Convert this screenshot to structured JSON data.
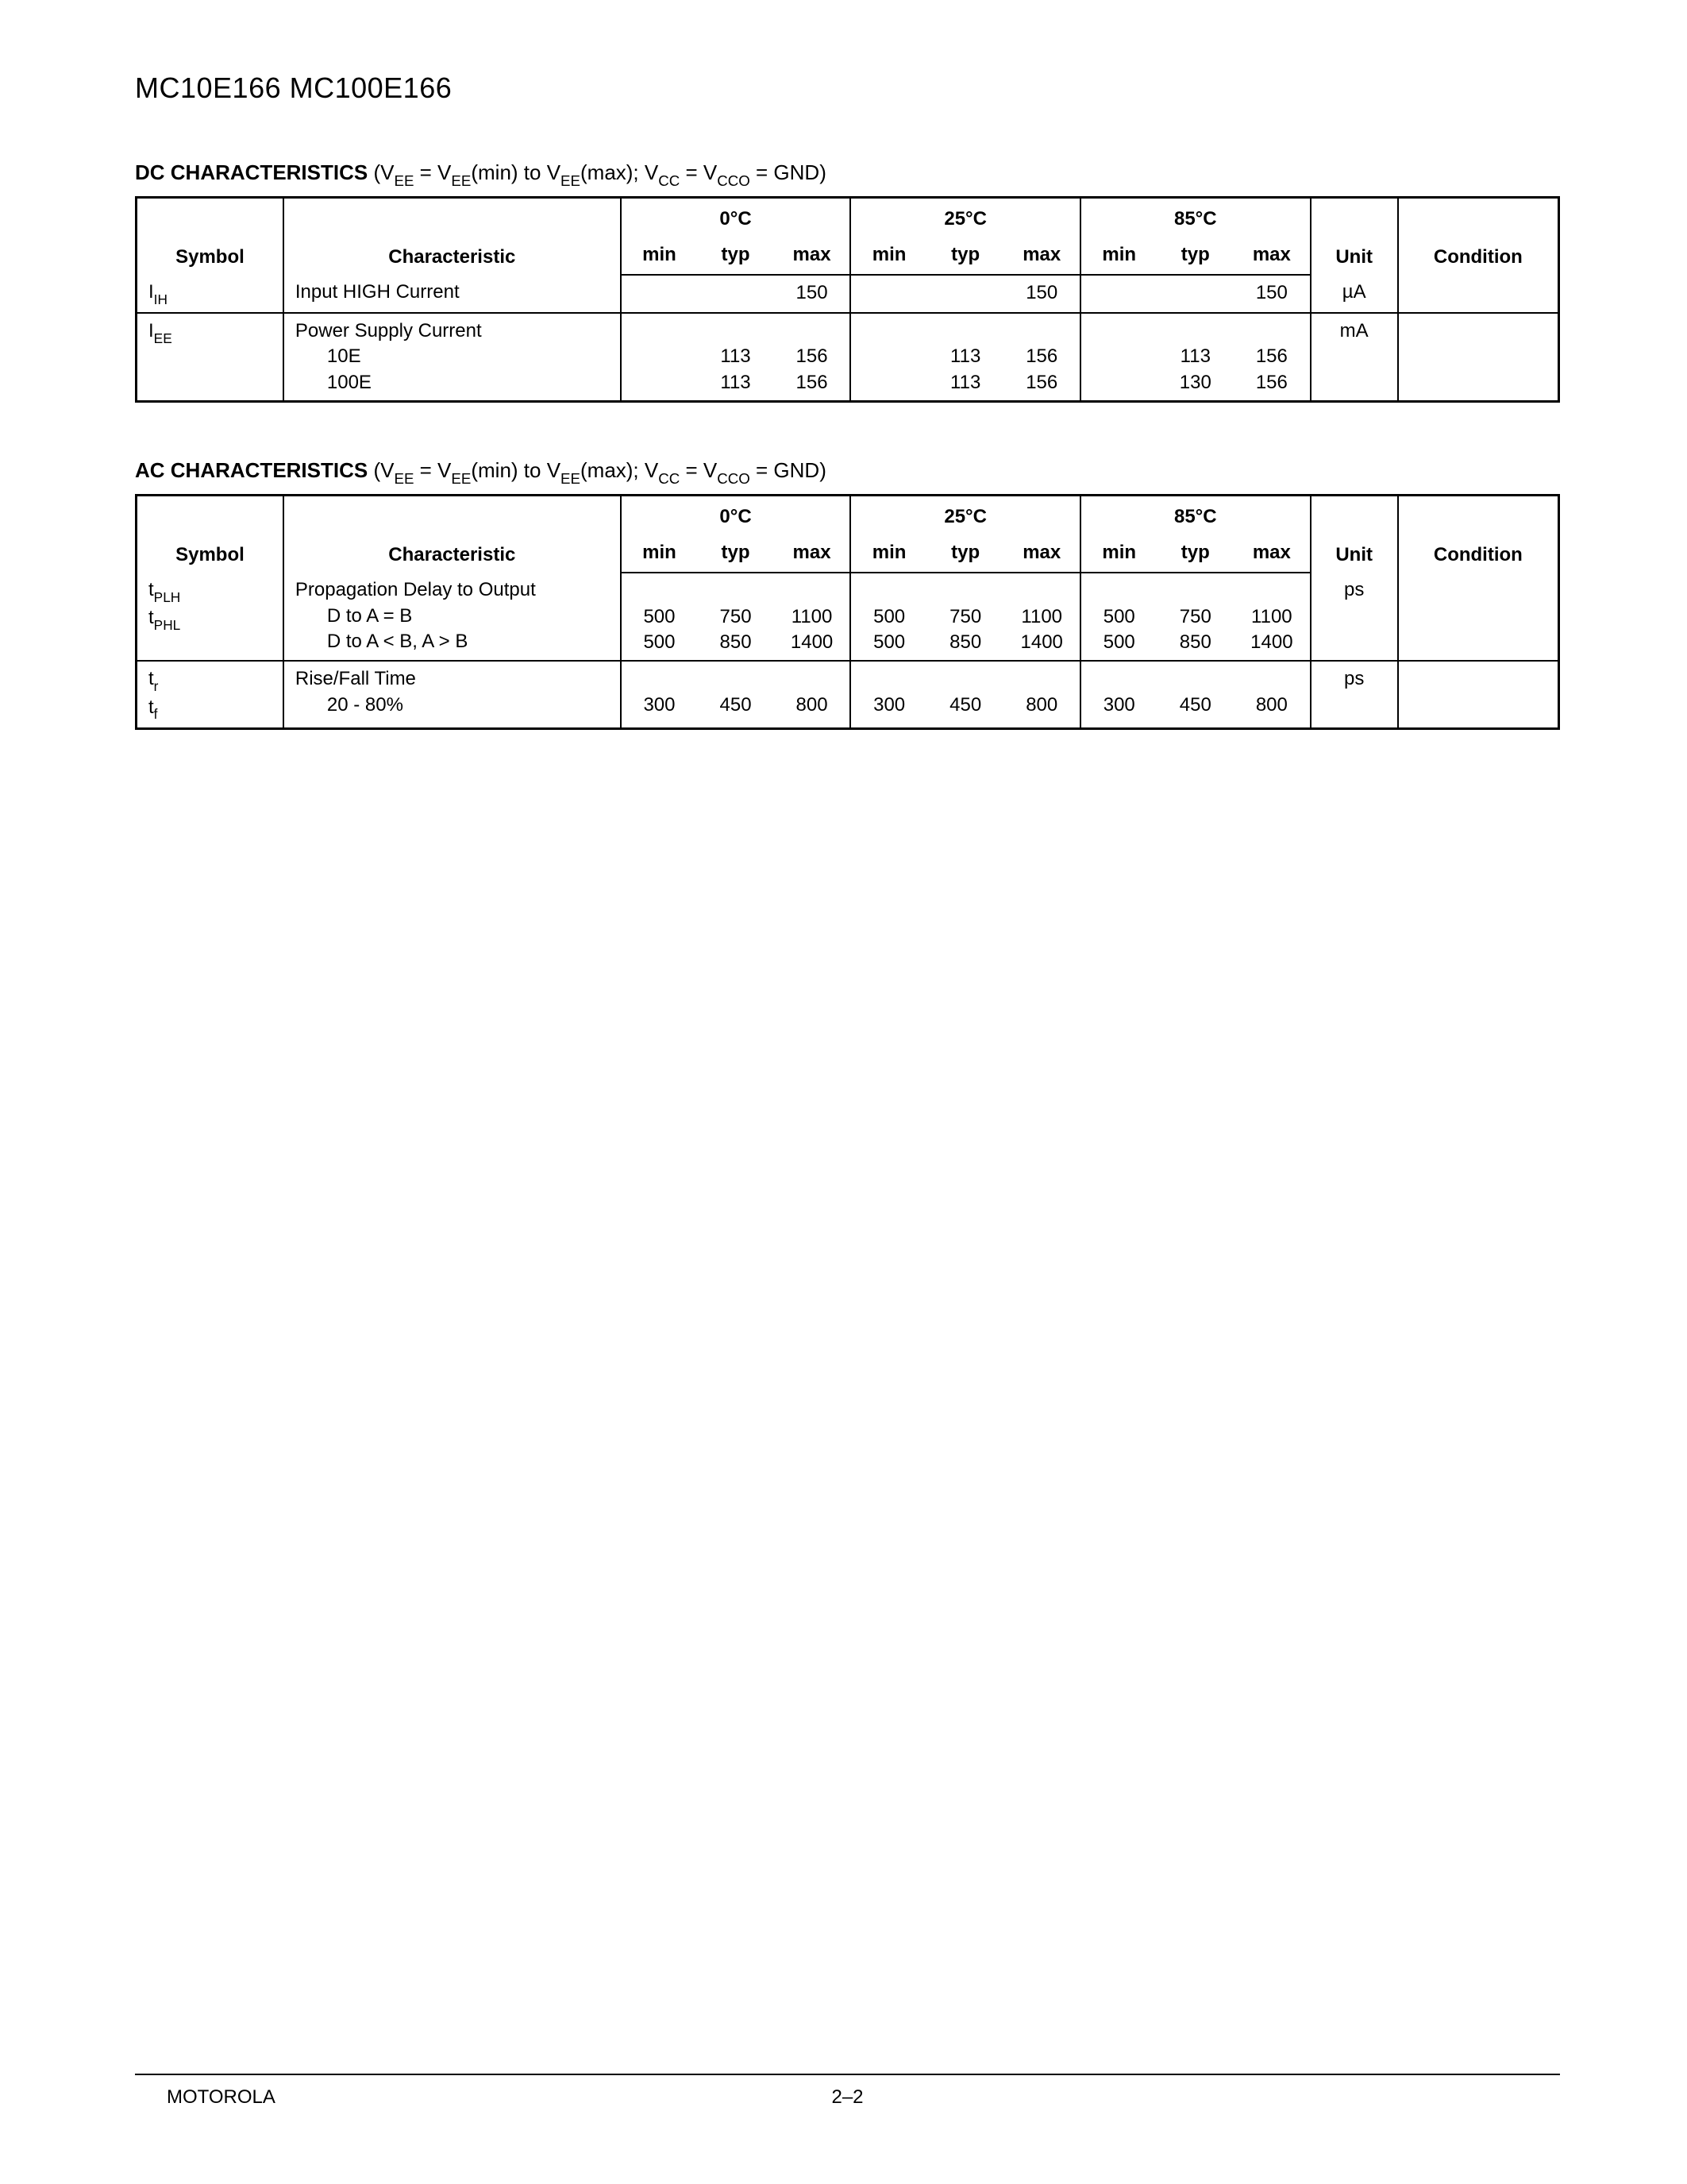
{
  "page": {
    "part_title": "MC10E166 MC100E166",
    "footer_brand": "MOTOROLA",
    "footer_page": "2–2"
  },
  "headers": {
    "symbol": "Symbol",
    "characteristic": "Characteristic",
    "temps": [
      "0°C",
      "25°C",
      "85°C"
    ],
    "min": "min",
    "typ": "typ",
    "max": "max",
    "unit": "Unit",
    "condition": "Condition"
  },
  "dc": {
    "title_bold": "DC CHARACTERISTICS",
    "title_rest_a": " (V",
    "title_rest_b": " = V",
    "title_rest_c": "(min) to V",
    "title_rest_d": "(max); V",
    "title_rest_e": " = V",
    "title_rest_f": " = GND)",
    "sub_ee": "EE",
    "sub_cc": "CC",
    "sub_cco": "CCO",
    "rows": [
      {
        "sym_pre": "I",
        "sym_sub": "IH",
        "char_lines": [
          "Input HIGH Current"
        ],
        "t0": {
          "min": "",
          "typ": "",
          "max": "150"
        },
        "t25": {
          "min": "",
          "typ": "",
          "max": "150"
        },
        "t85": {
          "min": "",
          "typ": "",
          "max": "150"
        },
        "unit": "µA",
        "cond": ""
      },
      {
        "sym_pre": "I",
        "sym_sub": "EE",
        "char_lines": [
          "Power Supply Current",
          "10E",
          "100E"
        ],
        "t0": {
          "min": "",
          "typ": [
            "",
            "113",
            "113"
          ],
          "max": [
            "",
            "156",
            "156"
          ]
        },
        "t25": {
          "min": "",
          "typ": [
            "",
            "113",
            "113"
          ],
          "max": [
            "",
            "156",
            "156"
          ]
        },
        "t85": {
          "min": "",
          "typ": [
            "",
            "113",
            "130"
          ],
          "max": [
            "",
            "156",
            "156"
          ]
        },
        "unit": "mA",
        "cond": ""
      }
    ]
  },
  "ac": {
    "title_bold": "AC CHARACTERISTICS",
    "rows": [
      {
        "sym_lines": [
          {
            "pre": "t",
            "sub": "PLH"
          },
          {
            "pre": "t",
            "sub": "PHL"
          }
        ],
        "char_lines": [
          "Propagation Delay to Output",
          "D to A = B",
          "D to A < B, A > B"
        ],
        "t0": {
          "min": [
            "",
            "500",
            "500"
          ],
          "typ": [
            "",
            "750",
            "850"
          ],
          "max": [
            "",
            "1100",
            "1400"
          ]
        },
        "t25": {
          "min": [
            "",
            "500",
            "500"
          ],
          "typ": [
            "",
            "750",
            "850"
          ],
          "max": [
            "",
            "1100",
            "1400"
          ]
        },
        "t85": {
          "min": [
            "",
            "500",
            "500"
          ],
          "typ": [
            "",
            "750",
            "850"
          ],
          "max": [
            "",
            "1100",
            "1400"
          ]
        },
        "unit": "ps",
        "cond": ""
      },
      {
        "sym_lines": [
          {
            "pre": "t",
            "sub": "r"
          },
          {
            "pre": "t",
            "sub": "f"
          }
        ],
        "char_lines": [
          "Rise/Fall Time",
          "20 - 80%"
        ],
        "t0": {
          "min": [
            "",
            "300"
          ],
          "typ": [
            "",
            "450"
          ],
          "max": [
            "",
            "800"
          ]
        },
        "t25": {
          "min": [
            "",
            "300"
          ],
          "typ": [
            "",
            "450"
          ],
          "max": [
            "",
            "800"
          ]
        },
        "t85": {
          "min": [
            "",
            "300"
          ],
          "typ": [
            "",
            "450"
          ],
          "max": [
            "",
            "800"
          ]
        },
        "unit": "ps",
        "cond": ""
      }
    ]
  }
}
